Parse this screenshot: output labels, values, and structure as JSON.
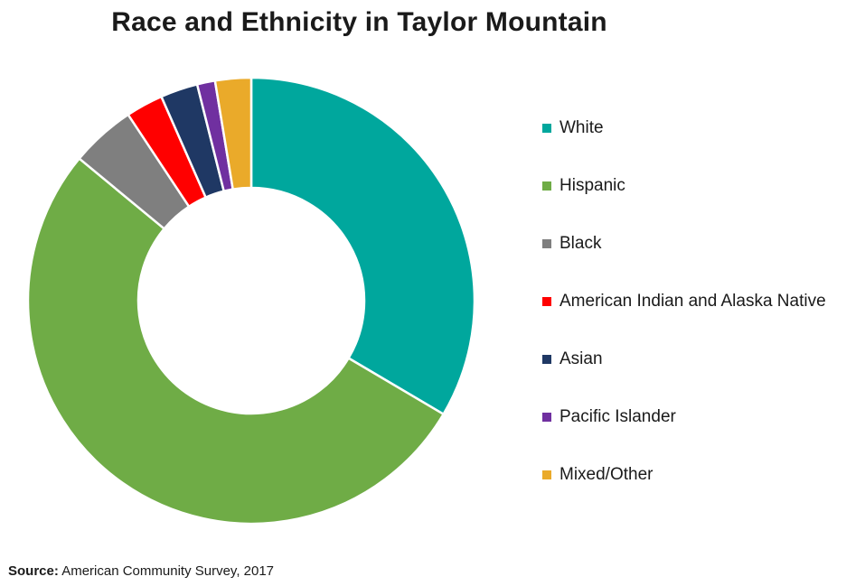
{
  "chart_data": {
    "type": "pie",
    "title": "Race and Ethnicity in Taylor Mountain",
    "categories": [
      "White",
      "Hispanic",
      "Black",
      "American Indian and Alaska Native",
      "Asian",
      "Pacific Islander",
      "Mixed/Other"
    ],
    "values": [
      33.5,
      52.5,
      4.7,
      2.7,
      2.7,
      1.3,
      2.6
    ],
    "colors": [
      "#00A79D",
      "#6FAC46",
      "#7F7F7F",
      "#FF0000",
      "#1F3864",
      "#7030A0",
      "#EAAA2A"
    ],
    "legend_position": "right",
    "donut": true
  },
  "source": {
    "label": "Source:",
    "text": "American Community Survey, 2017"
  }
}
